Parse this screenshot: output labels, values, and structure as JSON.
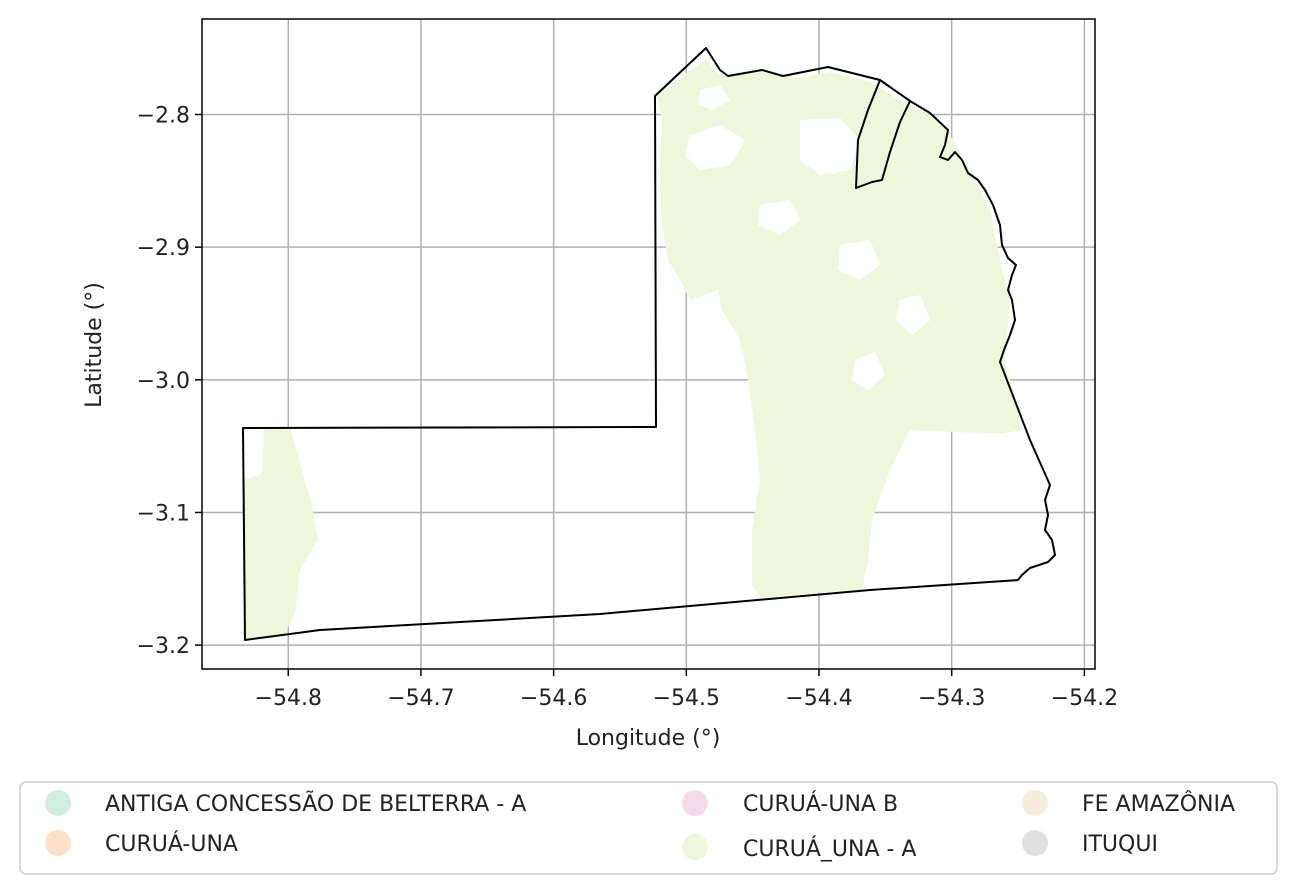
{
  "axes": {
    "xlabel": "Longitude (°)",
    "ylabel": "Latitude (°)",
    "xlim": [
      -54.865,
      -54.192
    ],
    "ylim": [
      -3.218,
      -2.728
    ],
    "x_ticks": [
      {
        "value": -54.8,
        "label": "−54.8"
      },
      {
        "value": -54.7,
        "label": "−54.7"
      },
      {
        "value": -54.6,
        "label": "−54.6"
      },
      {
        "value": -54.5,
        "label": "−54.5"
      },
      {
        "value": -54.4,
        "label": "−54.4"
      },
      {
        "value": -54.3,
        "label": "−54.3"
      },
      {
        "value": -54.2,
        "label": "−54.2"
      }
    ],
    "y_ticks": [
      {
        "value": -2.8,
        "label": "−2.8"
      },
      {
        "value": -2.9,
        "label": "−2.9"
      },
      {
        "value": -3.0,
        "label": "−3.0"
      },
      {
        "value": -3.1,
        "label": "−3.1"
      },
      {
        "value": -3.2,
        "label": "−3.2"
      }
    ],
    "grid": true
  },
  "legend": {
    "placement": "bottom-center",
    "columns": 3,
    "items": [
      {
        "label": "ANTIGA CONCESSÃO DE BELTERRA - A",
        "color": "#cfeede"
      },
      {
        "label": "CURUÁ-UNA",
        "color": "#fde0c9"
      },
      {
        "label": "CURUÁ-UNA B",
        "color": "#f4daea"
      },
      {
        "label": "CURUÁ_UNA - A",
        "color": "#eef7db"
      },
      {
        "label": "FE AMAZÔNIA",
        "color": "#f7ebdc"
      },
      {
        "label": "ITUQUI",
        "color": "#e0e0e0"
      }
    ]
  },
  "colors": {
    "fill": "#eef7db",
    "boundary": "#000000",
    "grid": "#b0b0b0"
  }
}
